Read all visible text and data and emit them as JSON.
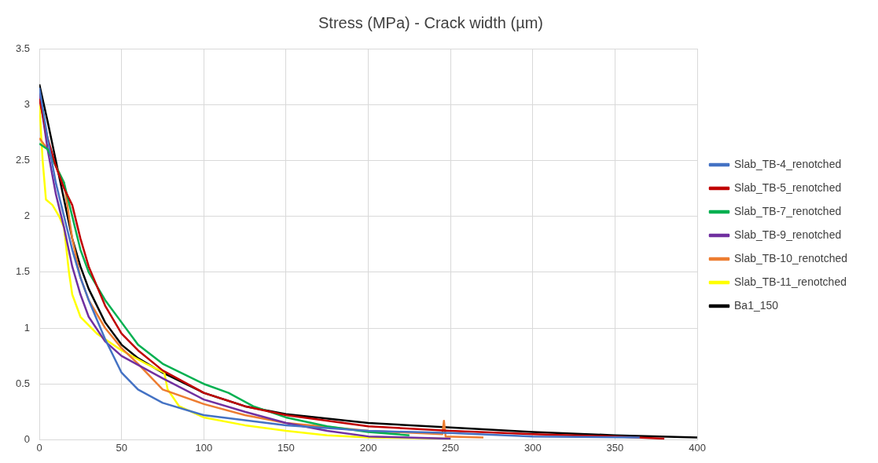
{
  "chart_data": {
    "type": "line",
    "title": "Stress (MPa) - Crack width (µm)",
    "xlim": [
      0,
      400
    ],
    "xticks": [
      0,
      50,
      100,
      150,
      200,
      250,
      300,
      350,
      400
    ],
    "ylim": [
      0,
      3.5
    ],
    "yticks": [
      0,
      0.5,
      1,
      1.5,
      2,
      2.5,
      3,
      3.5
    ],
    "grid": true,
    "legend": "right",
    "marker": "none",
    "line_style": "solid",
    "series": [
      {
        "name": "Slab_TB-4_renotched",
        "color": "#4472c4",
        "x": [
          0,
          5,
          10,
          15,
          20,
          25,
          30,
          40,
          50,
          60,
          75,
          100,
          150,
          200,
          250,
          300,
          365
        ],
        "values": [
          3.15,
          2.7,
          2.3,
          2.0,
          1.7,
          1.45,
          1.25,
          0.9,
          0.6,
          0.45,
          0.33,
          0.22,
          0.13,
          0.08,
          0.06,
          0.03,
          0.02
        ]
      },
      {
        "name": "Slab_TB-5_renotched",
        "color": "#c00000",
        "x": [
          0,
          5,
          10,
          15,
          20,
          25,
          30,
          40,
          50,
          60,
          75,
          100,
          125,
          150,
          200,
          250,
          300,
          350,
          380
        ],
        "values": [
          3.05,
          2.7,
          2.45,
          2.25,
          2.1,
          1.8,
          1.55,
          1.2,
          0.95,
          0.8,
          0.62,
          0.42,
          0.3,
          0.22,
          0.12,
          0.08,
          0.05,
          0.03,
          0.01
        ]
      },
      {
        "name": "Slab_TB-7_renotched",
        "color": "#00b050",
        "x": [
          0,
          5,
          10,
          15,
          20,
          25,
          30,
          40,
          50,
          60,
          75,
          100,
          115,
          130,
          150,
          175,
          200,
          225
        ],
        "values": [
          2.65,
          2.6,
          2.45,
          2.3,
          2.0,
          1.7,
          1.5,
          1.25,
          1.05,
          0.85,
          0.68,
          0.5,
          0.42,
          0.3,
          0.2,
          0.12,
          0.07,
          0.04
        ]
      },
      {
        "name": "Slab_TB-9_renotched",
        "color": "#7030a0",
        "x": [
          0,
          5,
          10,
          15,
          20,
          25,
          30,
          40,
          50,
          75,
          100,
          125,
          150,
          175,
          200,
          250
        ],
        "values": [
          3.1,
          2.6,
          2.2,
          1.9,
          1.55,
          1.3,
          1.1,
          0.88,
          0.75,
          0.55,
          0.36,
          0.25,
          0.15,
          0.08,
          0.03,
          0.01
        ]
      },
      {
        "name": "Slab_TB-10_renotched",
        "color": "#ed7d31",
        "x": [
          0,
          5,
          10,
          15,
          20,
          25,
          30,
          40,
          50,
          60,
          75,
          100,
          125,
          150,
          200,
          245,
          246,
          247,
          270
        ],
        "values": [
          2.7,
          2.6,
          2.45,
          2.3,
          1.8,
          1.45,
          1.25,
          1.0,
          0.82,
          0.68,
          0.45,
          0.32,
          0.22,
          0.15,
          0.08,
          0.05,
          0.17,
          0.03,
          0.02
        ]
      },
      {
        "name": "Slab_TB-11_renotched",
        "color": "#ffff00",
        "x": [
          0,
          2,
          4,
          8,
          12,
          15,
          18,
          20,
          25,
          35,
          50,
          65,
          76,
          78,
          85,
          100,
          125,
          150,
          175,
          200,
          250
        ],
        "values": [
          3.0,
          2.5,
          2.15,
          2.1,
          2.0,
          1.9,
          1.5,
          1.3,
          1.1,
          0.95,
          0.8,
          0.68,
          0.6,
          0.45,
          0.3,
          0.2,
          0.13,
          0.08,
          0.04,
          0.02,
          0.01
        ]
      },
      {
        "name": "Ba1_150",
        "color": "#000000",
        "x": [
          0,
          5,
          10,
          15,
          20,
          25,
          30,
          40,
          50,
          60,
          75,
          100,
          125,
          150,
          200,
          250,
          300,
          350,
          400
        ],
        "values": [
          3.18,
          2.85,
          2.5,
          2.15,
          1.8,
          1.55,
          1.35,
          1.05,
          0.85,
          0.73,
          0.6,
          0.42,
          0.3,
          0.23,
          0.15,
          0.11,
          0.07,
          0.04,
          0.02
        ]
      }
    ]
  }
}
